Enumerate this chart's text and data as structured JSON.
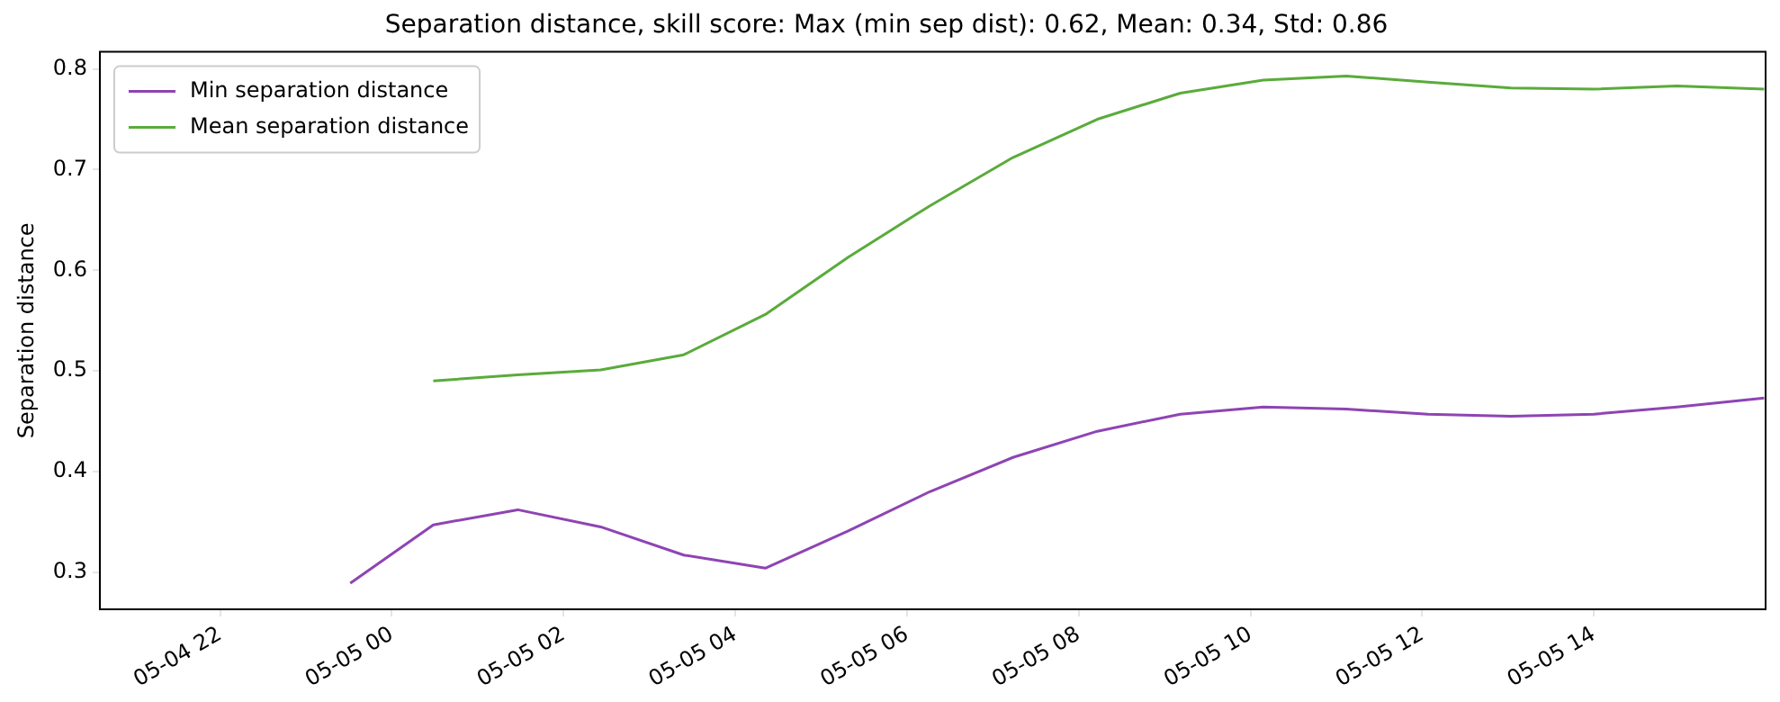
{
  "chart_data": {
    "type": "line",
    "title": "Separation distance, skill score: Max (min sep dist): 0.62, Mean: 0.34, Std: 0.86",
    "ylabel": "Separation distance",
    "xlim": [
      "--05-04T20:36",
      "--05-05T16:00"
    ],
    "xticks": [
      {
        "value": "--05-04T22:00",
        "label": "05-04 22"
      },
      {
        "value": "--05-05T00:00",
        "label": "05-05 00"
      },
      {
        "value": "--05-05T02:00",
        "label": "05-05 02"
      },
      {
        "value": "--05-05T04:00",
        "label": "05-05 04"
      },
      {
        "value": "--05-05T06:00",
        "label": "05-05 06"
      },
      {
        "value": "--05-05T08:00",
        "label": "05-05 08"
      },
      {
        "value": "--05-05T10:00",
        "label": "05-05 10"
      },
      {
        "value": "--05-05T12:00",
        "label": "05-05 12"
      },
      {
        "value": "--05-05T14:00",
        "label": "05-05 14"
      }
    ],
    "ylim": [
      0.263,
      0.817
    ],
    "yticks": [
      0.3,
      0.4,
      0.5,
      0.6,
      0.7,
      0.8
    ],
    "legend": "top left",
    "series": [
      {
        "name": "Min separation distance",
        "color": "#8e44b3",
        "x": [
          "--05-04T23:31",
          "--05-05T00:29",
          "--05-05T01:28",
          "--05-05T02:26",
          "--05-05T03:24",
          "--05-05T04:21",
          "--05-05T05:19",
          "--05-05T06:16",
          "--05-05T07:14",
          "--05-05T08:13",
          "--05-05T09:11",
          "--05-05T10:09",
          "--05-05T11:07",
          "--05-05T12:04",
          "--05-05T13:02",
          "--05-05T14:00",
          "--05-05T14:58",
          "--05-05T15:59"
        ],
        "values": [
          0.289,
          0.347,
          0.362,
          0.345,
          0.317,
          0.304,
          0.341,
          0.38,
          0.414,
          0.44,
          0.457,
          0.464,
          0.462,
          0.457,
          0.455,
          0.457,
          0.464,
          0.473
        ]
      },
      {
        "name": "Mean separation distance",
        "color": "#5aab3b",
        "x": [
          "--05-05T00:29",
          "--05-05T01:28",
          "--05-05T02:26",
          "--05-05T03:24",
          "--05-05T04:21",
          "--05-05T05:19",
          "--05-05T06:16",
          "--05-05T07:14",
          "--05-05T08:13",
          "--05-05T09:11",
          "--05-05T10:09",
          "--05-05T11:07",
          "--05-05T12:04",
          "--05-05T13:02",
          "--05-05T14:00",
          "--05-05T14:58",
          "--05-05T15:59"
        ],
        "values": [
          0.49,
          0.496,
          0.501,
          0.516,
          0.556,
          0.613,
          0.664,
          0.712,
          0.75,
          0.776,
          0.789,
          0.793,
          0.787,
          0.781,
          0.78,
          0.783,
          0.78
        ]
      }
    ]
  }
}
